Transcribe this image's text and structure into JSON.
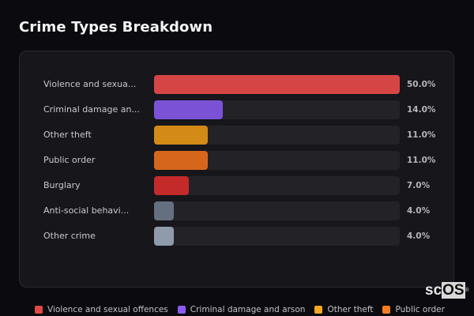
{
  "title": "Crime Types Breakdown",
  "rows": [
    {
      "label": "Violence and sexua...",
      "value": "50.0%",
      "pct": 50,
      "color": "#d64545"
    },
    {
      "label": "Criminal damage an...",
      "value": "14.0%",
      "pct": 14,
      "color": "#7b52d6"
    },
    {
      "label": "Other theft",
      "value": "11.0%",
      "pct": 11,
      "color": "#d48a16"
    },
    {
      "label": "Public order",
      "value": "11.0%",
      "pct": 11,
      "color": "#d6661c"
    },
    {
      "label": "Burglary",
      "value": "7.0%",
      "pct": 7,
      "color": "#c42a2a"
    },
    {
      "label": "Anti-social behavi...",
      "value": "4.0%",
      "pct": 4,
      "color": "#64707f"
    },
    {
      "label": "Other crime",
      "value": "4.0%",
      "pct": 4,
      "color": "#8f9aab"
    }
  ],
  "legend": [
    {
      "label": "Violence and sexual offences",
      "color": "#e04848"
    },
    {
      "label": "Criminal damage and arson",
      "color": "#8a5cf0"
    },
    {
      "label": "Other theft",
      "color": "#f5a623"
    },
    {
      "label": "Public order",
      "color": "#f57c22"
    }
  ],
  "brand": {
    "sc": "sc",
    "os": "OS",
    "reg": "®"
  },
  "chart_data": {
    "type": "bar",
    "orientation": "horizontal",
    "title": "Crime Types Breakdown",
    "categories": [
      "Violence and sexual offences",
      "Criminal damage and arson",
      "Other theft",
      "Public order",
      "Burglary",
      "Anti-social behaviour",
      "Other crime"
    ],
    "values": [
      50.0,
      14.0,
      11.0,
      11.0,
      7.0,
      4.0,
      4.0
    ],
    "unit": "%",
    "xlabel": "",
    "ylabel": "",
    "xlim": [
      0,
      50
    ],
    "grid": false,
    "legend_position": "bottom"
  }
}
